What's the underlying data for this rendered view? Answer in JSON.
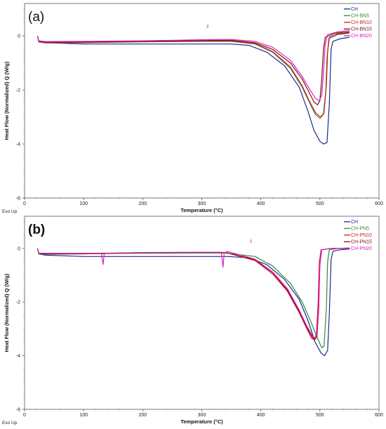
{
  "chart_data": [
    {
      "type": "line",
      "panel_label": "(a)",
      "xlabel": "Temperature (°C)",
      "ylabel": "Heat Flow (Normalized) Q (W/g)",
      "xlim": [
        0,
        600
      ],
      "ylim": [
        -6,
        1.2
      ],
      "xticks": [
        0,
        100,
        200,
        300,
        400,
        500,
        600
      ],
      "yticks": [
        -6,
        -4,
        -2,
        0
      ],
      "corner_note": "Exo Up",
      "marker_text": "2",
      "marker_at": {
        "x": 310,
        "y": 0.3
      },
      "legend_position": "top-right",
      "series": [
        {
          "name": "CH",
          "color": "#1f2a8a",
          "points": [
            [
              22,
              0
            ],
            [
              24,
              -0.2
            ],
            [
              35,
              -0.25
            ],
            [
              100,
              -0.3
            ],
            [
              200,
              -0.3
            ],
            [
              300,
              -0.3
            ],
            [
              350,
              -0.3
            ],
            [
              380,
              -0.35
            ],
            [
              410,
              -0.6
            ],
            [
              440,
              -1.1
            ],
            [
              465,
              -1.9
            ],
            [
              480,
              -2.8
            ],
            [
              490,
              -3.5
            ],
            [
              500,
              -3.9
            ],
            [
              506,
              -4.0
            ],
            [
              512,
              -3.95
            ],
            [
              516,
              -2.5
            ],
            [
              519,
              -0.5
            ],
            [
              522,
              -0.2
            ],
            [
              535,
              -0.1
            ],
            [
              550,
              -0.05
            ]
          ]
        },
        {
          "name": "CH-BN5",
          "color": "#2e8b3a",
          "points": [
            [
              22,
              0
            ],
            [
              24,
              -0.22
            ],
            [
              35,
              -0.26
            ],
            [
              100,
              -0.25
            ],
            [
              200,
              -0.22
            ],
            [
              300,
              -0.2
            ],
            [
              350,
              -0.2
            ],
            [
              390,
              -0.3
            ],
            [
              420,
              -0.6
            ],
            [
              450,
              -1.2
            ],
            [
              470,
              -1.9
            ],
            [
              483,
              -2.5
            ],
            [
              492,
              -2.9
            ],
            [
              500,
              -3.05
            ],
            [
              506,
              -2.9
            ],
            [
              510,
              -2.0
            ],
            [
              512,
              -0.8
            ],
            [
              515,
              -0.1
            ],
            [
              530,
              0.05
            ],
            [
              550,
              0.1
            ]
          ]
        },
        {
          "name": "CH-BN10",
          "color": "#d02020",
          "points": [
            [
              22,
              0
            ],
            [
              24,
              -0.21
            ],
            [
              35,
              -0.25
            ],
            [
              100,
              -0.24
            ],
            [
              200,
              -0.21
            ],
            [
              300,
              -0.19
            ],
            [
              350,
              -0.18
            ],
            [
              390,
              -0.28
            ],
            [
              420,
              -0.58
            ],
            [
              450,
              -1.15
            ],
            [
              470,
              -1.85
            ],
            [
              483,
              -2.45
            ],
            [
              493,
              -2.85
            ],
            [
              501,
              -3.0
            ],
            [
              507,
              -2.85
            ],
            [
              511,
              -1.8
            ],
            [
              513,
              -0.6
            ],
            [
              516,
              -0.05
            ],
            [
              530,
              0.08
            ],
            [
              550,
              0.12
            ]
          ]
        },
        {
          "name": "CH-BN15",
          "color": "#7a1020",
          "points": [
            [
              22,
              0
            ],
            [
              24,
              -0.2
            ],
            [
              35,
              -0.23
            ],
            [
              100,
              -0.22
            ],
            [
              200,
              -0.2
            ],
            [
              300,
              -0.17
            ],
            [
              350,
              -0.16
            ],
            [
              390,
              -0.25
            ],
            [
              420,
              -0.5
            ],
            [
              450,
              -1.0
            ],
            [
              470,
              -1.6
            ],
            [
              482,
              -2.1
            ],
            [
              490,
              -2.45
            ],
            [
              496,
              -2.55
            ],
            [
              500,
              -2.4
            ],
            [
              503,
              -1.6
            ],
            [
              506,
              -0.5
            ],
            [
              509,
              -0.05
            ],
            [
              525,
              0.1
            ],
            [
              550,
              0.15
            ]
          ]
        },
        {
          "name": "CH-BN20",
          "color": "#e020c0",
          "points": [
            [
              22,
              0
            ],
            [
              24,
              -0.18
            ],
            [
              35,
              -0.21
            ],
            [
              100,
              -0.2
            ],
            [
              200,
              -0.18
            ],
            [
              300,
              -0.14
            ],
            [
              350,
              -0.13
            ],
            [
              390,
              -0.2
            ],
            [
              420,
              -0.42
            ],
            [
              450,
              -0.9
            ],
            [
              470,
              -1.5
            ],
            [
              482,
              -1.95
            ],
            [
              492,
              -2.3
            ],
            [
              499,
              -2.4
            ],
            [
              503,
              -2.2
            ],
            [
              506,
              -1.4
            ],
            [
              509,
              -0.3
            ],
            [
              513,
              0.05
            ],
            [
              530,
              0.15
            ],
            [
              550,
              0.2
            ]
          ]
        }
      ]
    },
    {
      "type": "line",
      "panel_label": "(b)",
      "xlabel": "Temperature (°C)",
      "ylabel": "Heat Flow (Normalized) Q (W/g)",
      "xlim": [
        0,
        600
      ],
      "ylim": [
        -6,
        1.2
      ],
      "xticks": [
        0,
        100,
        200,
        300,
        400,
        500,
        600
      ],
      "yticks": [
        -6,
        -4,
        -2,
        0
      ],
      "corner_note": "Exo Up",
      "marker_text": "2",
      "marker_at": {
        "x": 383,
        "y": 0.22
      },
      "legend_position": "top-right",
      "series": [
        {
          "name": "CH",
          "color": "#1f2a8a",
          "points": [
            [
              22,
              0
            ],
            [
              24,
              -0.2
            ],
            [
              35,
              -0.25
            ],
            [
              100,
              -0.3
            ],
            [
              200,
              -0.3
            ],
            [
              300,
              -0.3
            ],
            [
              345,
              -0.3
            ],
            [
              380,
              -0.35
            ],
            [
              410,
              -0.6
            ],
            [
              440,
              -1.15
            ],
            [
              465,
              -1.9
            ],
            [
              480,
              -2.7
            ],
            [
              492,
              -3.5
            ],
            [
              502,
              -3.9
            ],
            [
              508,
              -4.0
            ],
            [
              513,
              -3.8
            ],
            [
              516,
              -2.4
            ],
            [
              519,
              -0.4
            ],
            [
              522,
              -0.1
            ],
            [
              535,
              -0.05
            ],
            [
              550,
              -0.02
            ]
          ]
        },
        {
          "name": "CH-PN5",
          "color": "#2e8b3a",
          "points": [
            [
              22,
              0
            ],
            [
              24,
              -0.2
            ],
            [
              35,
              -0.22
            ],
            [
              100,
              -0.2
            ],
            [
              200,
              -0.18
            ],
            [
              300,
              -0.17
            ],
            [
              340,
              -0.17
            ],
            [
              390,
              -0.3
            ],
            [
              420,
              -0.65
            ],
            [
              450,
              -1.3
            ],
            [
              470,
              -2.0
            ],
            [
              485,
              -2.75
            ],
            [
              495,
              -3.3
            ],
            [
              503,
              -3.7
            ],
            [
              507,
              -3.65
            ],
            [
              511,
              -2.2
            ],
            [
              513,
              -0.5
            ],
            [
              516,
              -0.05
            ],
            [
              530,
              0.0
            ],
            [
              550,
              0.02
            ]
          ]
        },
        {
          "name": "CH-PN10",
          "color": "#d02020",
          "points": [
            [
              22,
              0
            ],
            [
              24,
              -0.18
            ],
            [
              35,
              -0.2
            ],
            [
              100,
              -0.2
            ],
            [
              200,
              -0.16
            ],
            [
              300,
              -0.15
            ],
            [
              340,
              -0.15
            ],
            [
              390,
              -0.45
            ],
            [
              420,
              -0.95
            ],
            [
              445,
              -1.6
            ],
            [
              465,
              -2.4
            ],
            [
              478,
              -3.0
            ],
            [
              486,
              -3.35
            ],
            [
              490,
              -3.4
            ],
            [
              494,
              -3.2
            ],
            [
              497,
              -2.0
            ],
            [
              499,
              -0.5
            ],
            [
              502,
              -0.05
            ],
            [
              520,
              0.0
            ],
            [
              550,
              0.0
            ]
          ]
        },
        {
          "name": "CH-PN15",
          "color": "#7a1020",
          "points": [
            [
              22,
              0
            ],
            [
              24,
              -0.18
            ],
            [
              35,
              -0.2
            ],
            [
              100,
              -0.19
            ],
            [
              200,
              -0.16
            ],
            [
              300,
              -0.15
            ],
            [
              340,
              -0.15
            ],
            [
              390,
              -0.42
            ],
            [
              420,
              -0.9
            ],
            [
              445,
              -1.55
            ],
            [
              465,
              -2.35
            ],
            [
              478,
              -2.95
            ],
            [
              487,
              -3.3
            ],
            [
              491,
              -3.4
            ],
            [
              495,
              -3.3
            ],
            [
              498,
              -2.3
            ],
            [
              500,
              -0.6
            ],
            [
              503,
              -0.05
            ],
            [
              520,
              0.0
            ],
            [
              550,
              0.0
            ]
          ]
        },
        {
          "name": "CH-PN20",
          "color": "#e020c0",
          "points": [
            [
              22,
              0
            ],
            [
              24,
              -0.17
            ],
            [
              35,
              -0.18
            ],
            [
              100,
              -0.18
            ],
            [
              130,
              -0.18
            ],
            [
              133,
              -0.6
            ],
            [
              135,
              -0.18
            ],
            [
              200,
              -0.15
            ],
            [
              300,
              -0.14
            ],
            [
              333,
              -0.14
            ],
            [
              336,
              -0.7
            ],
            [
              338,
              -0.15
            ],
            [
              345,
              -0.12
            ],
            [
              390,
              -0.4
            ],
            [
              420,
              -0.88
            ],
            [
              445,
              -1.5
            ],
            [
              465,
              -2.3
            ],
            [
              478,
              -2.9
            ],
            [
              487,
              -3.25
            ],
            [
              491,
              -3.35
            ],
            [
              495,
              -3.2
            ],
            [
              498,
              -2.2
            ],
            [
              500,
              -0.55
            ],
            [
              503,
              -0.05
            ],
            [
              520,
              0.0
            ],
            [
              550,
              0.0
            ]
          ]
        }
      ]
    }
  ]
}
